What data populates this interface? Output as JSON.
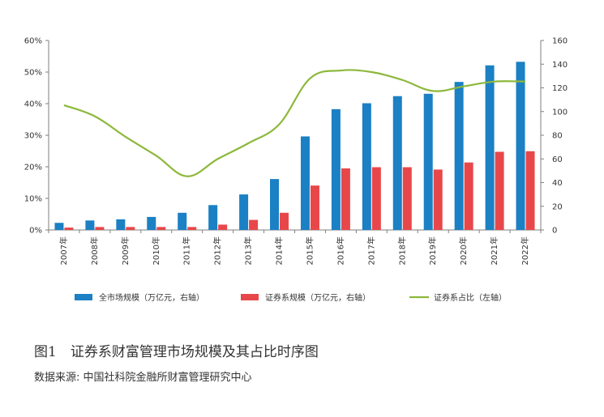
{
  "caption": "图1　证券系财富管理市场规模及其占比时序图",
  "source": "数据来源: 中国社科院金融所财富管理研究中心",
  "chart_data": {
    "type": "bar",
    "categories": [
      "2007年",
      "2008年",
      "2009年",
      "2010年",
      "2011年",
      "2012年",
      "2013年",
      "2014年",
      "2015年",
      "2016年",
      "2017年",
      "2018年",
      "2019年",
      "2020年",
      "2021年",
      "2022年"
    ],
    "series": [
      {
        "name": "全市场规模（万亿元，右轴）",
        "type": "bar",
        "axis": "right",
        "color": "#1b80c4",
        "values": [
          6,
          8,
          9,
          11,
          14.5,
          21,
          30,
          43,
          79,
          102,
          107,
          113,
          115,
          125,
          139,
          142
        ]
      },
      {
        "name": "证券系规模（万亿元，右轴）",
        "type": "bar",
        "axis": "right",
        "color": "#e8474a",
        "values": [
          2,
          2.5,
          2.5,
          2.5,
          2.5,
          4.5,
          8.5,
          14.5,
          37.5,
          52,
          53,
          53,
          51,
          57,
          66,
          66.5
        ]
      },
      {
        "name": "证券系占比（左轴）",
        "type": "line",
        "axis": "left",
        "color": "#8db83b",
        "values": [
          39.5,
          36,
          29.5,
          23.5,
          17,
          22.5,
          27.5,
          33.5,
          48,
          50.5,
          50,
          47.5,
          44,
          45.5,
          47,
          47
        ]
      }
    ],
    "left_axis": {
      "ylim": [
        0,
        60
      ],
      "ticks": [
        "0%",
        "10%",
        "20%",
        "30%",
        "40%",
        "50%",
        "60%"
      ]
    },
    "right_axis": {
      "ylim": [
        0,
        160
      ],
      "ticks": [
        "0",
        "20",
        "40",
        "60",
        "80",
        "100",
        "120",
        "140",
        "160"
      ]
    },
    "legend": [
      "全市场规模（万亿元，右轴）",
      "证券系规模（万亿元，右轴）",
      "证券系占比（左轴）"
    ],
    "legend_position": "bottom",
    "grid": false
  }
}
